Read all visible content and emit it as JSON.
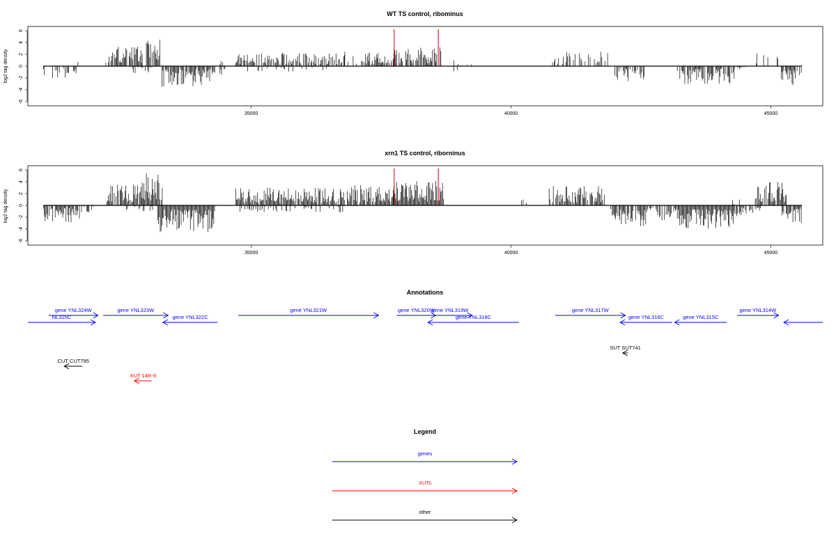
{
  "colors": {
    "genes": "#0000ff",
    "xuts": "#ff0000",
    "other": "#000000",
    "bars": "#000000",
    "highlight": "#cc0000"
  },
  "chart_data": [
    {
      "type": "bar",
      "title": "WT TS control, ribominus",
      "ylabel": "log2 tag density",
      "yticks": [
        6,
        4,
        2,
        0,
        -2,
        -4,
        -6
      ],
      "ylim": [
        -6,
        6
      ],
      "xticks": [
        35000,
        40000,
        45000
      ],
      "xlim": [
        30700,
        46000
      ],
      "highlight_positions": [
        37750,
        38600
      ],
      "regions": [
        {
          "start": 31000,
          "end": 31650,
          "sign": -1,
          "amp": 2.2,
          "density": 0.4
        },
        {
          "start": 31600,
          "end": 31700,
          "sign": 1,
          "amp": 1.5,
          "density": 0.3
        },
        {
          "start": 32200,
          "end": 32900,
          "sign": 1,
          "amp": 3.5,
          "density": 0.8
        },
        {
          "start": 32900,
          "end": 33250,
          "sign": 1,
          "amp": 5.0,
          "density": 0.8
        },
        {
          "start": 32700,
          "end": 33100,
          "sign": -1,
          "amp": 1.2,
          "density": 0.3
        },
        {
          "start": 33250,
          "end": 34300,
          "sign": -1,
          "amp": 3.5,
          "density": 0.9
        },
        {
          "start": 34400,
          "end": 34500,
          "sign": 1,
          "amp": 1.0,
          "density": 0.3
        },
        {
          "start": 34300,
          "end": 34500,
          "sign": -1,
          "amp": 2.0,
          "density": 0.3
        },
        {
          "start": 34700,
          "end": 36800,
          "sign": 1,
          "amp": 2.3,
          "density": 0.6
        },
        {
          "start": 34900,
          "end": 36500,
          "sign": -1,
          "amp": 1.0,
          "density": 0.15
        },
        {
          "start": 36800,
          "end": 37200,
          "sign": 1,
          "amp": 2.8,
          "density": 0.6
        },
        {
          "start": 37200,
          "end": 37800,
          "sign": 1,
          "amp": 2.5,
          "density": 0.7
        },
        {
          "start": 37700,
          "end": 38650,
          "sign": 1,
          "amp": 3.2,
          "density": 0.8
        },
        {
          "start": 38900,
          "end": 39300,
          "sign": 1,
          "amp": 1.0,
          "density": 0.2
        },
        {
          "start": 38900,
          "end": 39000,
          "sign": -1,
          "amp": 1.8,
          "density": 0.2
        },
        {
          "start": 40700,
          "end": 41900,
          "sign": 1,
          "amp": 2.6,
          "density": 0.4
        },
        {
          "start": 42000,
          "end": 42600,
          "sign": -1,
          "amp": 2.8,
          "density": 0.7
        },
        {
          "start": 43200,
          "end": 44300,
          "sign": -1,
          "amp": 3.0,
          "density": 0.7
        },
        {
          "start": 44300,
          "end": 44600,
          "sign": -1,
          "amp": 1.0,
          "density": 0.3
        },
        {
          "start": 44700,
          "end": 45200,
          "sign": 1,
          "amp": 2.5,
          "density": 0.3
        },
        {
          "start": 45200,
          "end": 45600,
          "sign": -1,
          "amp": 3.5,
          "density": 0.7
        }
      ]
    },
    {
      "type": "bar",
      "title": "xrn1 TS control, riborninus",
      "ylabel": "log2 tag density",
      "yticks": [
        6,
        4,
        2,
        0,
        -2,
        -4,
        -6
      ],
      "ylim": [
        -6,
        6
      ],
      "xticks": [
        35000,
        40000,
        45000
      ],
      "xlim": [
        30700,
        46000
      ],
      "highlight_positions": [
        37750,
        38600
      ],
      "regions": [
        {
          "start": 31000,
          "end": 31700,
          "sign": -1,
          "amp": 3.0,
          "density": 0.8
        },
        {
          "start": 31700,
          "end": 32000,
          "sign": -1,
          "amp": 1.5,
          "density": 0.3
        },
        {
          "start": 32200,
          "end": 32900,
          "sign": 1,
          "amp": 3.5,
          "density": 0.9
        },
        {
          "start": 32900,
          "end": 33300,
          "sign": 1,
          "amp": 5.5,
          "density": 0.9
        },
        {
          "start": 32600,
          "end": 33100,
          "sign": -1,
          "amp": 1.0,
          "density": 0.3
        },
        {
          "start": 33200,
          "end": 34300,
          "sign": -1,
          "amp": 4.5,
          "density": 1.0
        },
        {
          "start": 34700,
          "end": 36800,
          "sign": 1,
          "amp": 3.0,
          "density": 0.9
        },
        {
          "start": 34700,
          "end": 36800,
          "sign": -1,
          "amp": 1.2,
          "density": 0.25
        },
        {
          "start": 36800,
          "end": 37800,
          "sign": 1,
          "amp": 3.5,
          "density": 0.9
        },
        {
          "start": 37700,
          "end": 38700,
          "sign": 1,
          "amp": 4.2,
          "density": 1.0
        },
        {
          "start": 40700,
          "end": 41800,
          "sign": 1,
          "amp": 3.5,
          "density": 0.7
        },
        {
          "start": 40200,
          "end": 40300,
          "sign": 1,
          "amp": 1.5,
          "density": 0.3
        },
        {
          "start": 41900,
          "end": 42600,
          "sign": -1,
          "amp": 3.5,
          "density": 0.9
        },
        {
          "start": 42600,
          "end": 43200,
          "sign": -1,
          "amp": 2.5,
          "density": 0.6
        },
        {
          "start": 43200,
          "end": 44300,
          "sign": -1,
          "amp": 4.0,
          "density": 1.0
        },
        {
          "start": 44300,
          "end": 44800,
          "sign": -1,
          "amp": 2.0,
          "density": 0.6
        },
        {
          "start": 44200,
          "end": 44500,
          "sign": 1,
          "amp": 1.5,
          "density": 0.3
        },
        {
          "start": 44700,
          "end": 45300,
          "sign": 1,
          "amp": 4.0,
          "density": 0.9
        },
        {
          "start": 45200,
          "end": 45600,
          "sign": -1,
          "amp": 3.0,
          "density": 0.8
        }
      ]
    }
  ],
  "annotations": {
    "title": "Annotations",
    "features": [
      {
        "label": "NL325C",
        "type": "gene",
        "start": 30700,
        "end": 32000,
        "strand": "+",
        "row": 1
      },
      {
        "label": "gene YNL324W",
        "type": "gene",
        "start": 31100,
        "end": 32050,
        "strand": "+",
        "row": 0
      },
      {
        "label": "gene YNL323W",
        "type": "gene",
        "start": 32150,
        "end": 33400,
        "strand": "+",
        "row": 0
      },
      {
        "label": "gene YNL322C",
        "type": "gene",
        "start": 33300,
        "end": 34350,
        "strand": "-",
        "row": 1
      },
      {
        "label": "gene YNL321W",
        "type": "gene",
        "start": 34750,
        "end": 37450,
        "strand": "+",
        "row": 0
      },
      {
        "label": "gene YNL320W",
        "type": "gene",
        "start": 37800,
        "end": 38550,
        "strand": "+",
        "row": 0
      },
      {
        "label": "gene YNL319W",
        "type": "gene",
        "start": 38400,
        "end": 39250,
        "strand": "+",
        "row": 0
      },
      {
        "label": "gene YNL318C",
        "type": "gene",
        "start": 38400,
        "end": 40150,
        "strand": "-",
        "row": 1
      },
      {
        "label": "gene YNL317W",
        "type": "gene",
        "start": 40850,
        "end": 42200,
        "strand": "+",
        "row": 0
      },
      {
        "label": "gene YNL316C",
        "type": "gene",
        "start": 42100,
        "end": 43100,
        "strand": "-",
        "row": 1
      },
      {
        "label": "gene YNL315C",
        "type": "gene",
        "start": 43150,
        "end": 44150,
        "strand": "-",
        "row": 1
      },
      {
        "label": "gene YNL314W",
        "type": "gene",
        "start": 44350,
        "end": 45150,
        "strand": "+",
        "row": 0
      },
      {
        "label": "",
        "type": "gene",
        "start": 45250,
        "end": 46000,
        "strand": "-",
        "row": 1
      },
      {
        "label": "CUT CUT795",
        "type": "other",
        "start": 31400,
        "end": 31750,
        "strand": "-",
        "row": 2
      },
      {
        "label": "XUT 14R-9",
        "type": "xut",
        "start": 32750,
        "end": 33080,
        "strand": "-",
        "row": 3
      },
      {
        "label": "SUT SUT741",
        "type": "other",
        "start": 42150,
        "end": 42250,
        "strand": "-",
        "row": 4
      }
    ]
  },
  "legend": {
    "title": "Legend",
    "items": [
      {
        "label": "genes",
        "type": "gene"
      },
      {
        "label": "XUTs",
        "type": "xut"
      },
      {
        "label": "other",
        "type": "other"
      }
    ]
  }
}
